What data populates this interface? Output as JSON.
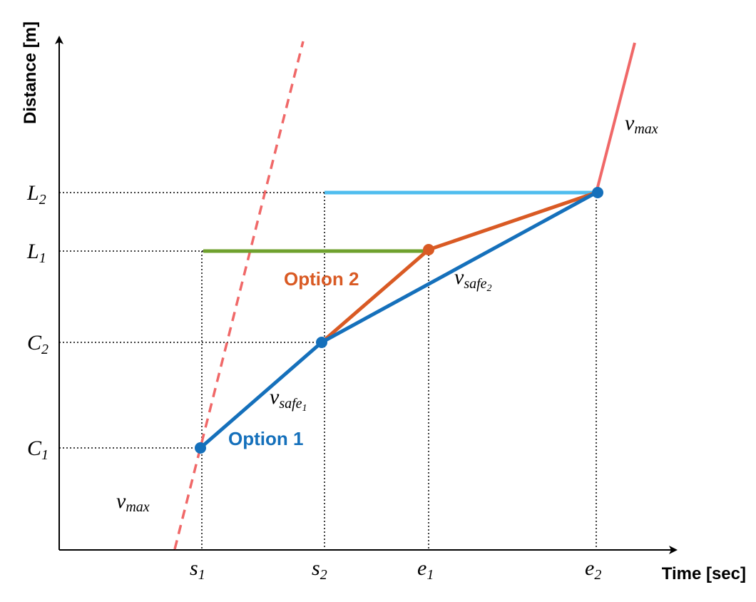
{
  "axes": {
    "y_title": "Distance [m]",
    "x_title": "Time [sec]"
  },
  "y_labels": [
    {
      "base": "L",
      "sub": "2"
    },
    {
      "base": "L",
      "sub": "1"
    },
    {
      "base": "C",
      "sub": "2"
    },
    {
      "base": "C",
      "sub": "1"
    }
  ],
  "x_labels": [
    {
      "base": "s",
      "sub": "1"
    },
    {
      "base": "s",
      "sub": "2"
    },
    {
      "base": "e",
      "sub": "1"
    },
    {
      "base": "e",
      "sub": "2"
    }
  ],
  "options": [
    {
      "label": "Option 1"
    },
    {
      "label": "Option 2"
    }
  ],
  "speeds": [
    {
      "base": "v",
      "sub": "max"
    },
    {
      "base": "v",
      "sub": "max"
    },
    {
      "base": "v",
      "sub": "safe",
      "subsub": "1"
    },
    {
      "base": "v",
      "sub": "safe",
      "subsub": "2"
    }
  ]
}
